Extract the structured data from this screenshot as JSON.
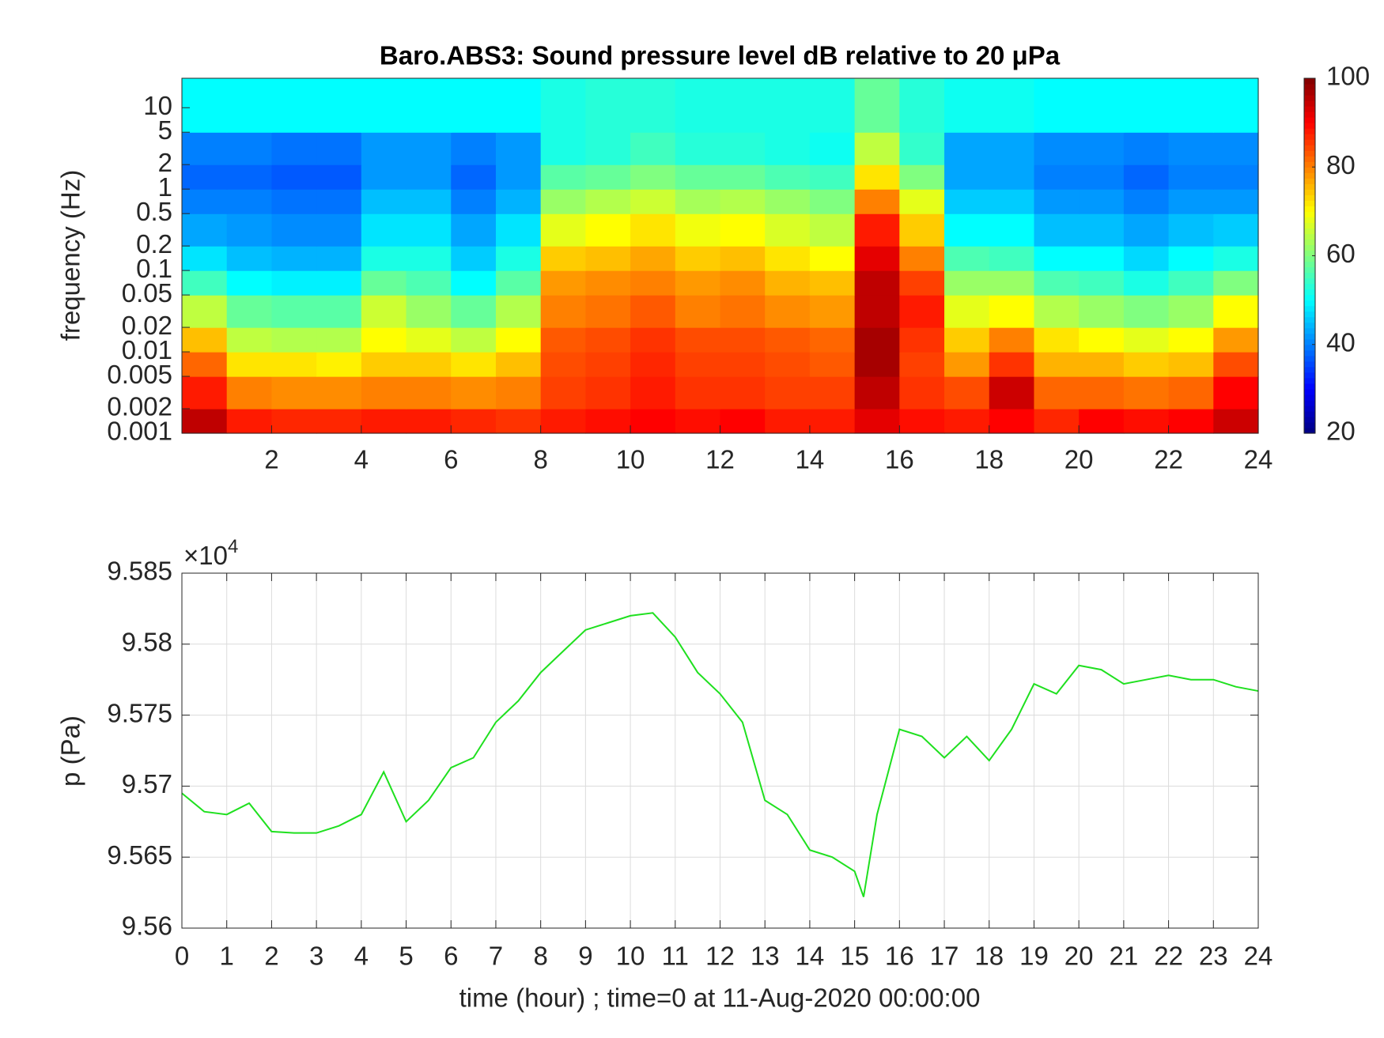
{
  "chart_data": [
    {
      "type": "heatmap",
      "title": "Baro.ABS3: Sound pressure level dB relative to 20 μPa",
      "ylabel": "frequency (Hz)",
      "xlim": [
        0,
        24
      ],
      "xticks": [
        2,
        4,
        6,
        8,
        10,
        12,
        14,
        16,
        18,
        20,
        22,
        24
      ],
      "ylim": [
        0.001,
        23
      ],
      "yscale": "log",
      "yticks": [
        0.001,
        0.002,
        0.005,
        0.01,
        0.02,
        0.05,
        0.1,
        0.2,
        0.5,
        1,
        2,
        5,
        10
      ],
      "xbins": [
        0,
        1,
        2,
        3,
        4,
        5,
        6,
        7,
        8,
        9,
        10,
        11,
        12,
        13,
        14,
        15,
        16,
        17,
        18,
        19,
        20,
        21,
        22,
        23,
        24
      ],
      "ybins": [
        0.001,
        0.002,
        0.005,
        0.01,
        0.02,
        0.05,
        0.1,
        0.2,
        0.5,
        1,
        2,
        5,
        23
      ],
      "z": [
        [
          95,
          88,
          87,
          87,
          88,
          88,
          87,
          86,
          88,
          89,
          90,
          89,
          90,
          88,
          88,
          92,
          89,
          88,
          90,
          87,
          90,
          89,
          90,
          94
        ],
        [
          88,
          80,
          79,
          79,
          80,
          80,
          79,
          80,
          85,
          86,
          88,
          86,
          86,
          85,
          85,
          95,
          86,
          84,
          94,
          82,
          82,
          81,
          82,
          90
        ],
        [
          82,
          72,
          72,
          71,
          74,
          74,
          72,
          75,
          84,
          85,
          87,
          85,
          85,
          84,
          83,
          97,
          85,
          78,
          86,
          76,
          76,
          74,
          75,
          84
        ],
        [
          75,
          65,
          64,
          64,
          70,
          68,
          65,
          70,
          83,
          84,
          86,
          84,
          84,
          83,
          82,
          97,
          86,
          74,
          80,
          72,
          70,
          68,
          70,
          78
        ],
        [
          65,
          58,
          57,
          57,
          66,
          62,
          58,
          64,
          80,
          81,
          83,
          80,
          81,
          79,
          78,
          95,
          88,
          68,
          70,
          64,
          62,
          60,
          62,
          70
        ],
        [
          55,
          50,
          49,
          49,
          58,
          56,
          50,
          57,
          78,
          79,
          80,
          78,
          79,
          76,
          75,
          95,
          85,
          62,
          62,
          56,
          55,
          52,
          55,
          60
        ],
        [
          48,
          45,
          44,
          44,
          52,
          52,
          46,
          52,
          74,
          75,
          77,
          74,
          75,
          72,
          70,
          92,
          80,
          56,
          55,
          50,
          50,
          47,
          50,
          52
        ],
        [
          43,
          42,
          41,
          41,
          48,
          48,
          43,
          48,
          68,
          70,
          72,
          69,
          70,
          67,
          65,
          88,
          74,
          50,
          50,
          45,
          45,
          43,
          45,
          46
        ],
        [
          40,
          40,
          39,
          39,
          45,
          45,
          40,
          44,
          62,
          64,
          66,
          63,
          64,
          62,
          60,
          80,
          68,
          46,
          46,
          42,
          42,
          40,
          42,
          42
        ],
        [
          38,
          38,
          37,
          37,
          42,
          42,
          38,
          42,
          57,
          58,
          60,
          58,
          58,
          56,
          55,
          72,
          60,
          43,
          43,
          40,
          40,
          38,
          40,
          40
        ],
        [
          40,
          40,
          39,
          39,
          42,
          42,
          40,
          42,
          52,
          53,
          55,
          53,
          53,
          52,
          51,
          65,
          54,
          43,
          43,
          41,
          41,
          40,
          41,
          41
        ],
        [
          50,
          50,
          50,
          50,
          50,
          50,
          50,
          50,
          52,
          53,
          53,
          52,
          52,
          52,
          52,
          58,
          53,
          51,
          51,
          50,
          50,
          50,
          50,
          50
        ]
      ],
      "colormap": "jet",
      "colorbar": {
        "lim": [
          20,
          100
        ],
        "ticks": [
          20,
          40,
          60,
          80,
          100
        ]
      }
    },
    {
      "type": "line",
      "ylabel": "p (Pa)",
      "xlabel": "time (hour) ; time=0 at 11-Aug-2020 00:00:00",
      "y_multiplier": "×10",
      "y_multiplier_exponent": "4",
      "xlim": [
        0,
        24
      ],
      "xticks": [
        0,
        1,
        2,
        3,
        4,
        5,
        6,
        7,
        8,
        9,
        10,
        11,
        12,
        13,
        14,
        15,
        16,
        17,
        18,
        19,
        20,
        21,
        22,
        23,
        24
      ],
      "ylim": [
        9.56,
        9.585
      ],
      "yticks": [
        9.56,
        9.565,
        9.57,
        9.575,
        9.58,
        9.585
      ],
      "grid": true,
      "color": "#1fe01f",
      "x": [
        0,
        0.5,
        1,
        1.5,
        2,
        2.5,
        3,
        3.5,
        4,
        4.5,
        5,
        5.5,
        6,
        6.5,
        7,
        7.5,
        8,
        8.5,
        9,
        9.5,
        10,
        10.5,
        11,
        11.5,
        12,
        12.5,
        13,
        13.5,
        14,
        14.5,
        15,
        15.2,
        15.5,
        16,
        16.5,
        17,
        17.5,
        18,
        18.5,
        19,
        19.5,
        20,
        20.5,
        21,
        21.5,
        22,
        22.5,
        23,
        23.5,
        24
      ],
      "values": [
        9.5695,
        9.5682,
        9.568,
        9.5688,
        9.5668,
        9.5667,
        9.5667,
        9.5672,
        9.568,
        9.571,
        9.5675,
        9.569,
        9.5713,
        9.572,
        9.5745,
        9.576,
        9.578,
        9.5795,
        9.581,
        9.5815,
        9.582,
        9.5822,
        9.5805,
        9.578,
        9.5765,
        9.5745,
        9.569,
        9.568,
        9.5655,
        9.565,
        9.564,
        9.5622,
        9.568,
        9.574,
        9.5735,
        9.572,
        9.5735,
        9.5718,
        9.574,
        9.5772,
        9.5765,
        9.5785,
        9.5782,
        9.5772,
        9.5775,
        9.5778,
        9.5775,
        9.5775,
        9.577,
        9.5767
      ]
    }
  ]
}
